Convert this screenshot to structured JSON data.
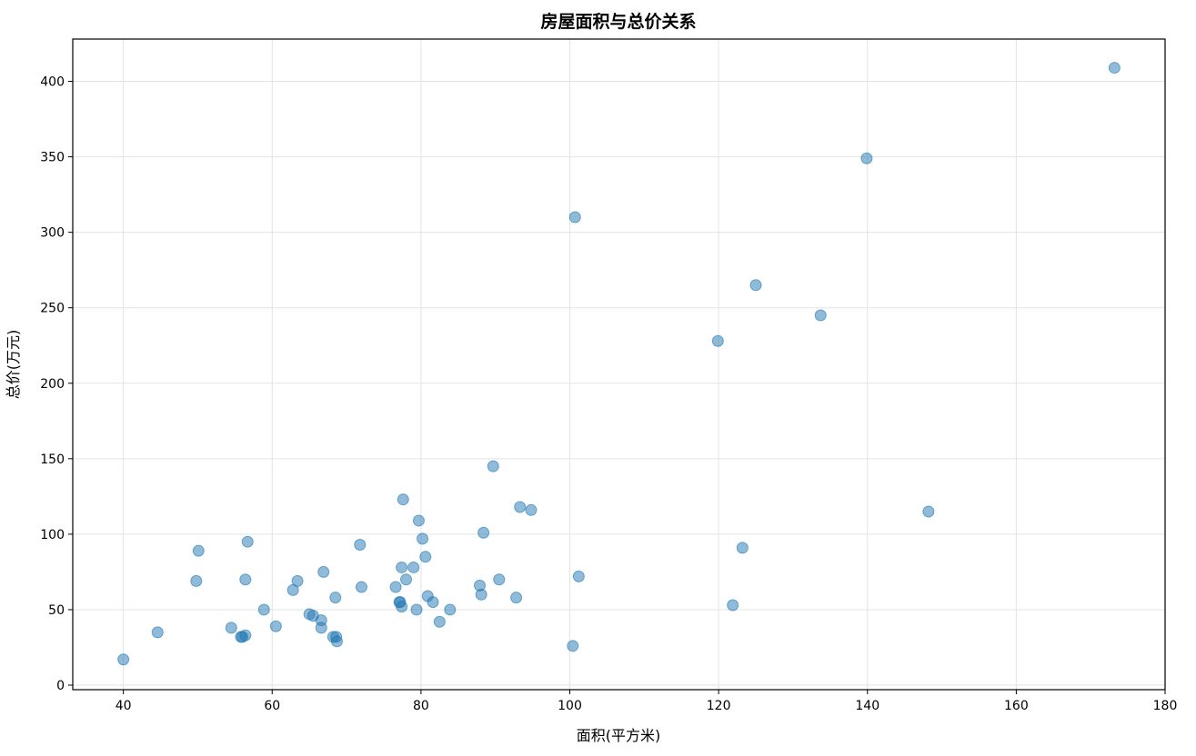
{
  "chart_data": {
    "type": "scatter",
    "title": "房屋面积与总价关系",
    "xlabel": "面积(平方米)",
    "ylabel": "总价(万元)",
    "xlim": [
      33.2,
      180
    ],
    "ylim": [
      -3,
      428
    ],
    "xticks": [
      40,
      60,
      80,
      100,
      120,
      140,
      160,
      180
    ],
    "yticks": [
      0,
      50,
      100,
      150,
      200,
      250,
      300,
      350,
      400
    ],
    "grid": true,
    "color": "#1f77b4",
    "points": [
      {
        "x": 40,
        "y": 17
      },
      {
        "x": 44.6,
        "y": 35
      },
      {
        "x": 49.8,
        "y": 69
      },
      {
        "x": 50.1,
        "y": 89
      },
      {
        "x": 54.5,
        "y": 38
      },
      {
        "x": 55.8,
        "y": 32
      },
      {
        "x": 56.0,
        "y": 32
      },
      {
        "x": 56.4,
        "y": 33
      },
      {
        "x": 56.4,
        "y": 70
      },
      {
        "x": 56.7,
        "y": 95
      },
      {
        "x": 58.9,
        "y": 50
      },
      {
        "x": 60.5,
        "y": 39
      },
      {
        "x": 62.8,
        "y": 63
      },
      {
        "x": 63.4,
        "y": 69
      },
      {
        "x": 65.0,
        "y": 47
      },
      {
        "x": 65.5,
        "y": 46
      },
      {
        "x": 66.6,
        "y": 43
      },
      {
        "x": 66.6,
        "y": 38
      },
      {
        "x": 66.9,
        "y": 75
      },
      {
        "x": 68.2,
        "y": 32
      },
      {
        "x": 68.5,
        "y": 58
      },
      {
        "x": 68.6,
        "y": 32
      },
      {
        "x": 68.7,
        "y": 29
      },
      {
        "x": 71.8,
        "y": 93
      },
      {
        "x": 72.0,
        "y": 65
      },
      {
        "x": 76.6,
        "y": 65
      },
      {
        "x": 77.1,
        "y": 55
      },
      {
        "x": 77.2,
        "y": 55
      },
      {
        "x": 77.4,
        "y": 52
      },
      {
        "x": 77.4,
        "y": 78
      },
      {
        "x": 77.6,
        "y": 123
      },
      {
        "x": 78.0,
        "y": 70
      },
      {
        "x": 79.0,
        "y": 78
      },
      {
        "x": 79.4,
        "y": 50
      },
      {
        "x": 79.7,
        "y": 109
      },
      {
        "x": 80.2,
        "y": 97
      },
      {
        "x": 80.6,
        "y": 85
      },
      {
        "x": 80.9,
        "y": 59
      },
      {
        "x": 81.6,
        "y": 55
      },
      {
        "x": 82.5,
        "y": 42
      },
      {
        "x": 83.9,
        "y": 50
      },
      {
        "x": 87.9,
        "y": 66
      },
      {
        "x": 88.1,
        "y": 60
      },
      {
        "x": 88.4,
        "y": 101
      },
      {
        "x": 89.7,
        "y": 145
      },
      {
        "x": 90.5,
        "y": 70
      },
      {
        "x": 92.8,
        "y": 58
      },
      {
        "x": 93.3,
        "y": 118
      },
      {
        "x": 94.8,
        "y": 116
      },
      {
        "x": 100.4,
        "y": 26
      },
      {
        "x": 100.7,
        "y": 310
      },
      {
        "x": 101.2,
        "y": 72
      },
      {
        "x": 119.9,
        "y": 228
      },
      {
        "x": 121.9,
        "y": 53
      },
      {
        "x": 123.2,
        "y": 91
      },
      {
        "x": 125.0,
        "y": 265
      },
      {
        "x": 133.7,
        "y": 245
      },
      {
        "x": 139.9,
        "y": 349
      },
      {
        "x": 148.2,
        "y": 115
      },
      {
        "x": 173.2,
        "y": 409
      }
    ]
  }
}
